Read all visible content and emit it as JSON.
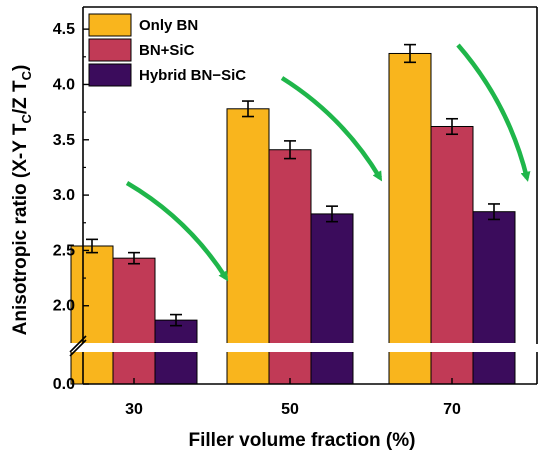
{
  "chart_data": {
    "type": "bar",
    "xlabel": "Filler volume fraction (%)",
    "ylabel_main": "Anisotropic ratio (X-Y T",
    "ylabel_sub1": "C",
    "ylabel_mid": "/Z T",
    "ylabel_sub2": "C",
    "ylabel_end": ")",
    "categories": [
      "30",
      "50",
      "70"
    ],
    "series": [
      {
        "name": "Only BN",
        "color": "#f9b51d",
        "values": [
          2.54,
          3.78,
          4.28
        ],
        "errors": [
          0.06,
          0.07,
          0.08
        ]
      },
      {
        "name": "BN+SiC",
        "color": "#c13a56",
        "values": [
          2.43,
          3.41,
          3.62
        ],
        "errors": [
          0.05,
          0.08,
          0.07
        ]
      },
      {
        "name": "Hybrid BN−SiC",
        "color": "#3b0c5c",
        "values": [
          1.87,
          2.83,
          2.85
        ],
        "errors": [
          0.05,
          0.07,
          0.07
        ]
      }
    ],
    "yticks": [
      "0.0",
      "2.0",
      "2.5",
      "3.0",
      "3.5",
      "4.0",
      "4.5"
    ],
    "ylim": [
      0,
      4.7
    ],
    "axis_break": [
      0,
      1.6
    ],
    "legend_position": "top-left",
    "trend_arrows": true,
    "arrow_color": "#1fb64a"
  }
}
